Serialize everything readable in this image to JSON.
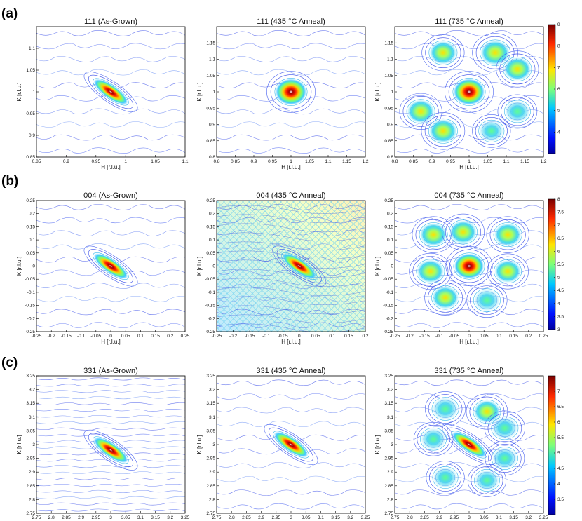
{
  "colors": {
    "contour_low": "#5a6cf0",
    "contour_mid": "#30c8e0",
    "hot": "#c00000",
    "frame": "#000000"
  },
  "chart_data": [
    {
      "type": "contour",
      "row": "(a)",
      "title": "111 (As-Grown)",
      "xlabel": "H [r.l.u.]",
      "ylabel": "K [r.l.u.]",
      "xlim": [
        0.85,
        1.15
      ],
      "ylim": [
        0.85,
        1.15
      ],
      "xticks": [
        "0.85",
        "0.9",
        "0.95",
        "1",
        "1.05",
        "1.1"
      ],
      "yticks": [
        "0.85",
        "0.9",
        "0.95",
        "1",
        "1.05",
        "1.1"
      ],
      "peaks": [
        {
          "h": 1.0,
          "k": 1.0,
          "intensity": 9.0,
          "elongation": "diagonal"
        }
      ]
    },
    {
      "type": "contour",
      "row": "(a)",
      "title": "111 (435 °C Anneal)",
      "xlabel": "H [r.l.u.]",
      "ylabel": "K [r.l.u.]",
      "xlim": [
        0.8,
        1.2
      ],
      "ylim": [
        0.8,
        1.2
      ],
      "xticks": [
        "0.8",
        "0.85",
        "0.9",
        "0.95",
        "1",
        "1.05",
        "1.1",
        "1.15",
        "1.2"
      ],
      "yticks": [
        "0.8",
        "0.85",
        "0.9",
        "0.95",
        "1",
        "1.05",
        "1.1",
        "1.15"
      ],
      "peaks": [
        {
          "h": 1.0,
          "k": 1.0,
          "intensity": 9.0,
          "elongation": "none"
        }
      ]
    },
    {
      "type": "contour",
      "row": "(a)",
      "title": "111 (735 °C Anneal)",
      "xlabel": "H [r.l.u.]",
      "ylabel": "K [r.l.u.]",
      "xlim": [
        0.8,
        1.2
      ],
      "ylim": [
        0.8,
        1.2
      ],
      "xticks": [
        "0.8",
        "0.85",
        "0.9",
        "0.95",
        "1",
        "1.05",
        "1.1",
        "1.15",
        "1.2"
      ],
      "yticks": [
        "0.8",
        "0.85",
        "0.9",
        "0.95",
        "1",
        "1.05",
        "1.1",
        "1.15"
      ],
      "peaks": [
        {
          "h": 1.0,
          "k": 1.0,
          "intensity": 9.0
        },
        {
          "h": 0.93,
          "k": 1.12,
          "intensity": 6.0
        },
        {
          "h": 1.07,
          "k": 1.12,
          "intensity": 7.5
        },
        {
          "h": 1.13,
          "k": 1.07,
          "intensity": 6.0
        },
        {
          "h": 0.87,
          "k": 0.94,
          "intensity": 6.0
        },
        {
          "h": 0.93,
          "k": 0.88,
          "intensity": 6.5
        },
        {
          "h": 1.13,
          "k": 0.94,
          "intensity": 4.5
        },
        {
          "h": 1.06,
          "k": 0.88,
          "intensity": 4.0
        }
      ],
      "colorbar": {
        "ticks": [
          "9",
          "8",
          "7",
          "6",
          "5",
          "4"
        ],
        "range": [
          3,
          9
        ]
      }
    },
    {
      "type": "contour",
      "row": "(b)",
      "title": "004 (As-Grown)",
      "xlabel": "H [r.l.u.]",
      "ylabel": "K [r.l.u.]",
      "xlim": [
        -0.25,
        0.25
      ],
      "ylim": [
        -0.25,
        0.25
      ],
      "xticks": [
        "-0.25",
        "-0.2",
        "-0.15",
        "-0.1",
        "-0.05",
        "0",
        "0.05",
        "0.1",
        "0.15",
        "0.2",
        "0.25"
      ],
      "yticks": [
        "-0.25",
        "-0.2",
        "-0.15",
        "-0.1",
        "-0.05",
        "0",
        "0.05",
        "0.1",
        "0.15",
        "0.2",
        "0.25"
      ],
      "peaks": [
        {
          "h": 0.0,
          "k": 0.0,
          "intensity": 8.0,
          "elongation": "diagonal"
        }
      ]
    },
    {
      "type": "contour",
      "row": "(b)",
      "title": "004 (435 °C Anneal)",
      "xlabel": "H [r.l.u.]",
      "ylabel": "K [r.l.u.]",
      "xlim": [
        -0.25,
        0.2
      ],
      "ylim": [
        -0.25,
        0.25
      ],
      "xticks": [
        "-0.25",
        "-0.2",
        "-0.15",
        "-0.1",
        "-0.05",
        "0",
        "0.05",
        "0.1",
        "0.15",
        "0.2"
      ],
      "yticks": [
        "-0.25",
        "-0.2",
        "-0.15",
        "-0.1",
        "-0.05",
        "0",
        "0.05",
        "0.1",
        "0.15",
        "0.2",
        "0.25"
      ],
      "peaks": [
        {
          "h": 0.0,
          "k": 0.0,
          "intensity": 8.0,
          "elongation": "diagonal"
        }
      ]
    },
    {
      "type": "contour",
      "row": "(b)",
      "title": "004 (735 °C Anneal)",
      "xlabel": "H [r.l.u.]",
      "ylabel": "K [r.l.u.]",
      "xlim": [
        -0.25,
        0.25
      ],
      "ylim": [
        -0.25,
        0.25
      ],
      "xticks": [
        "-0.25",
        "-0.2",
        "-0.15",
        "-0.1",
        "-0.05",
        "0",
        "0.05",
        "0.1",
        "0.15",
        "0.2",
        "0.25"
      ],
      "yticks": [
        "-0.25",
        "-0.2",
        "-0.15",
        "-0.1",
        "-0.05",
        "0",
        "0.05",
        "0.1",
        "0.15",
        "0.2",
        "0.25"
      ],
      "peaks": [
        {
          "h": 0.0,
          "k": 0.0,
          "intensity": 8.0
        },
        {
          "h": -0.12,
          "k": 0.12,
          "intensity": 6.0
        },
        {
          "h": -0.02,
          "k": 0.13,
          "intensity": 6.0
        },
        {
          "h": 0.13,
          "k": 0.12,
          "intensity": 6.0
        },
        {
          "h": -0.13,
          "k": -0.02,
          "intensity": 6.0
        },
        {
          "h": 0.13,
          "k": -0.02,
          "intensity": 5.5
        },
        {
          "h": -0.08,
          "k": -0.12,
          "intensity": 5.5
        },
        {
          "h": 0.06,
          "k": -0.13,
          "intensity": 5.0
        }
      ],
      "colorbar": {
        "ticks": [
          "8",
          "7.5",
          "7",
          "6.5",
          "6",
          "5.5",
          "5",
          "4.5",
          "4",
          "3.5",
          "3"
        ],
        "range": [
          3,
          8
        ]
      }
    },
    {
      "type": "contour",
      "row": "(c)",
      "title": "331 (As-Grown)",
      "xlabel": "H [r.l.u.]",
      "ylabel": "K [r.l.u.]",
      "xlim": [
        2.75,
        3.25
      ],
      "ylim": [
        2.75,
        3.25
      ],
      "xticks": [
        "2.75",
        "2.8",
        "2.85",
        "2.9",
        "2.95",
        "3",
        "3.05",
        "3.1",
        "3.15",
        "3.2",
        "3.25"
      ],
      "yticks": [
        "2.75",
        "2.8",
        "2.85",
        "2.9",
        "2.95",
        "3",
        "3.05",
        "3.1",
        "3.15",
        "3.2",
        "3.25"
      ],
      "peaks": [
        {
          "h": 3.0,
          "k": 2.98,
          "intensity": 7.0,
          "elongation": "diagonal"
        }
      ]
    },
    {
      "type": "contour",
      "row": "(c)",
      "title": "331 (435 °C Anneal)",
      "xlabel": "H [r.l.u.]",
      "ylabel": "K [r.l.u.]",
      "xlim": [
        2.75,
        3.25
      ],
      "ylim": [
        2.75,
        3.25
      ],
      "xticks": [
        "2.75",
        "2.8",
        "2.85",
        "2.9",
        "2.95",
        "3",
        "3.05",
        "3.1",
        "3.15",
        "3.2",
        "3.25"
      ],
      "yticks": [
        "2.75",
        "2.8",
        "2.85",
        "2.9",
        "2.95",
        "3",
        "3.05",
        "3.1",
        "3.15",
        "3.2",
        "3.25"
      ],
      "peaks": [
        {
          "h": 3.0,
          "k": 3.0,
          "intensity": 7.0,
          "elongation": "diagonal"
        }
      ]
    },
    {
      "type": "contour",
      "row": "(c)",
      "title": "331 (735 °C Anneal)",
      "xlabel": "H [r.l.u.]",
      "ylabel": "K [r.l.u.]",
      "xlim": [
        2.75,
        3.25
      ],
      "ylim": [
        2.75,
        3.25
      ],
      "xticks": [
        "2.75",
        "2.8",
        "2.85",
        "2.9",
        "2.95",
        "3",
        "3.05",
        "3.1",
        "3.15",
        "3.2",
        "3.25"
      ],
      "yticks": [
        "2.75",
        "2.8",
        "2.85",
        "2.9",
        "2.95",
        "3",
        "3.05",
        "3.1",
        "3.15",
        "3.2",
        "3.25"
      ],
      "peaks": [
        {
          "h": 3.0,
          "k": 3.0,
          "intensity": 7.0,
          "elongation": "diagonal"
        },
        {
          "h": 2.92,
          "k": 3.13,
          "intensity": 5.0
        },
        {
          "h": 3.06,
          "k": 3.12,
          "intensity": 5.5
        },
        {
          "h": 3.12,
          "k": 3.06,
          "intensity": 5.0
        },
        {
          "h": 2.88,
          "k": 3.02,
          "intensity": 4.5
        },
        {
          "h": 3.12,
          "k": 2.95,
          "intensity": 4.5
        },
        {
          "h": 2.92,
          "k": 2.88,
          "intensity": 4.0
        },
        {
          "h": 3.06,
          "k": 2.87,
          "intensity": 4.0
        }
      ],
      "colorbar": {
        "ticks": [
          "7",
          "6.5",
          "6",
          "5.5",
          "5",
          "4.5",
          "4",
          "3.5"
        ],
        "range": [
          3,
          7.5
        ]
      }
    }
  ],
  "row_labels": [
    "(a)",
    "(b)",
    "(c)"
  ]
}
